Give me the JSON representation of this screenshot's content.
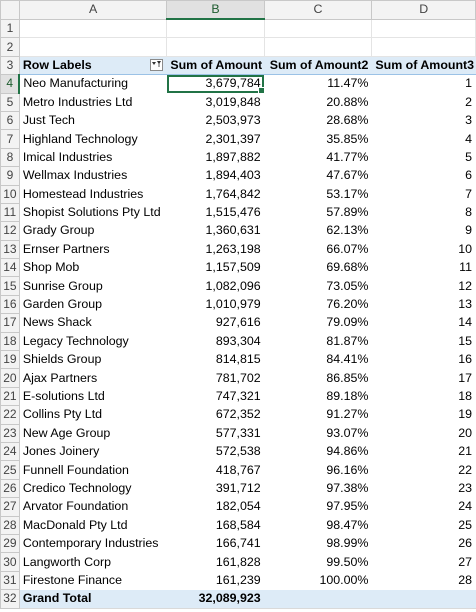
{
  "columns": [
    "A",
    "B",
    "C",
    "D"
  ],
  "pivot": {
    "header_row_number": "3",
    "row_labels_header": "Row Labels",
    "value_headers": [
      "Sum of Amount",
      "Sum of Amount2",
      "Sum of Amount3"
    ],
    "filter_icon": "filter-dropdown-icon",
    "first_data_row": 4,
    "rows": [
      {
        "label": "Neo Manufacturing",
        "amount": "3,679,784",
        "pct": "11.47%",
        "rank": "1"
      },
      {
        "label": "Metro Industries Ltd",
        "amount": "3,019,848",
        "pct": "20.88%",
        "rank": "2"
      },
      {
        "label": "Just Tech",
        "amount": "2,503,973",
        "pct": "28.68%",
        "rank": "3"
      },
      {
        "label": "Highland Technology",
        "amount": "2,301,397",
        "pct": "35.85%",
        "rank": "4"
      },
      {
        "label": "Imical Industries",
        "amount": "1,897,882",
        "pct": "41.77%",
        "rank": "5"
      },
      {
        "label": "Wellmax Industries",
        "amount": "1,894,403",
        "pct": "47.67%",
        "rank": "6"
      },
      {
        "label": "Homestead Industries",
        "amount": "1,764,842",
        "pct": "53.17%",
        "rank": "7"
      },
      {
        "label": "Shopist Solutions Pty Ltd",
        "amount": "1,515,476",
        "pct": "57.89%",
        "rank": "8"
      },
      {
        "label": "Grady Group",
        "amount": "1,360,631",
        "pct": "62.13%",
        "rank": "9"
      },
      {
        "label": "Ernser Partners",
        "amount": "1,263,198",
        "pct": "66.07%",
        "rank": "10"
      },
      {
        "label": "Shop Mob",
        "amount": "1,157,509",
        "pct": "69.68%",
        "rank": "11"
      },
      {
        "label": "Sunrise Group",
        "amount": "1,082,096",
        "pct": "73.05%",
        "rank": "12"
      },
      {
        "label": "Garden Group",
        "amount": "1,010,979",
        "pct": "76.20%",
        "rank": "13"
      },
      {
        "label": "News Shack",
        "amount": "927,616",
        "pct": "79.09%",
        "rank": "14"
      },
      {
        "label": "Legacy Technology",
        "amount": "893,304",
        "pct": "81.87%",
        "rank": "15"
      },
      {
        "label": "Shields Group",
        "amount": "814,815",
        "pct": "84.41%",
        "rank": "16"
      },
      {
        "label": "Ajax Partners",
        "amount": "781,702",
        "pct": "86.85%",
        "rank": "17"
      },
      {
        "label": "E-solutions Ltd",
        "amount": "747,321",
        "pct": "89.18%",
        "rank": "18"
      },
      {
        "label": "Collins Pty Ltd",
        "amount": "672,352",
        "pct": "91.27%",
        "rank": "19"
      },
      {
        "label": "New Age Group",
        "amount": "577,331",
        "pct": "93.07%",
        "rank": "20"
      },
      {
        "label": "Jones Joinery",
        "amount": "572,538",
        "pct": "94.86%",
        "rank": "21"
      },
      {
        "label": "Funnell Foundation",
        "amount": "418,767",
        "pct": "96.16%",
        "rank": "22"
      },
      {
        "label": "Credico Technology",
        "amount": "391,712",
        "pct": "97.38%",
        "rank": "23"
      },
      {
        "label": "Arvator Foundation",
        "amount": "182,054",
        "pct": "97.95%",
        "rank": "24"
      },
      {
        "label": "MacDonald Pty Ltd",
        "amount": "168,584",
        "pct": "98.47%",
        "rank": "25"
      },
      {
        "label": "Contemporary Industries",
        "amount": "166,741",
        "pct": "98.99%",
        "rank": "26"
      },
      {
        "label": "Langworth Corp",
        "amount": "161,828",
        "pct": "99.50%",
        "rank": "27"
      },
      {
        "label": "Firestone Finance",
        "amount": "161,239",
        "pct": "100.00%",
        "rank": "28"
      }
    ],
    "total": {
      "row_number": "32",
      "label": "Grand Total",
      "amount": "32,089,923"
    }
  },
  "blank_rows": [
    "1",
    "2"
  ],
  "active_cell": "B4",
  "colors": {
    "accent": "#217346",
    "pivot_header_fill": "#ddebf7"
  }
}
